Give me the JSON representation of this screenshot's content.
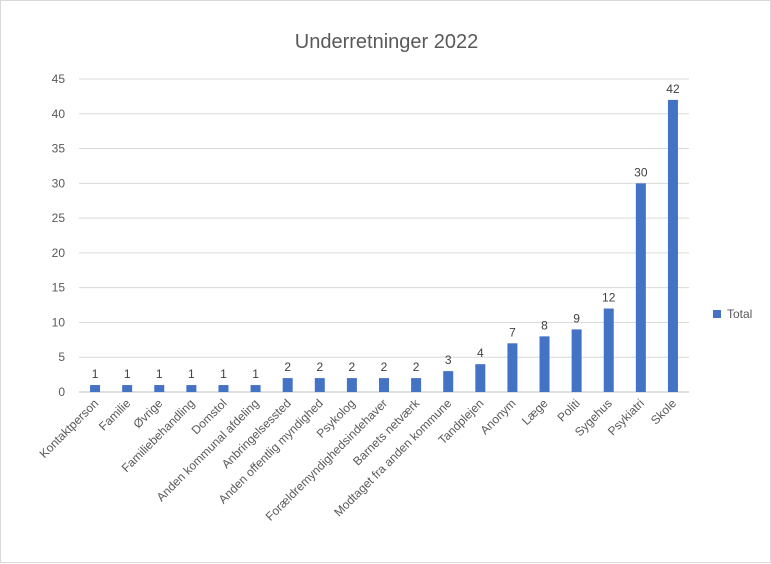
{
  "chart_data": {
    "type": "bar",
    "title": "Underretninger 2022",
    "categories": [
      "Kontaktperson",
      "Familie",
      "Øvrige",
      "Familiebehandling",
      "Domstol",
      "Anden kommunal afdeling",
      "Anbringelsessted",
      "Anden offentlig myndighed",
      "Psykolog",
      "Forældremyndighedsindehaver",
      "Barnets netværk",
      "Modtaget fra anden kommune",
      "Tandplejen",
      "Anonym",
      "Læge",
      "Politi",
      "Sygehus",
      "Psykiatri",
      "Skole"
    ],
    "series": [
      {
        "name": "Total",
        "values": [
          1,
          1,
          1,
          1,
          1,
          1,
          2,
          2,
          2,
          2,
          2,
          3,
          4,
          7,
          8,
          9,
          12,
          30,
          42
        ]
      }
    ],
    "ylim": [
      0,
      45
    ],
    "yticks": [
      0,
      5,
      10,
      15,
      20,
      25,
      30,
      35,
      40,
      45
    ],
    "xlabel": "",
    "ylabel": "",
    "grid": true,
    "legend": "right",
    "bar_color": "#4472c4",
    "data_labels": true
  }
}
